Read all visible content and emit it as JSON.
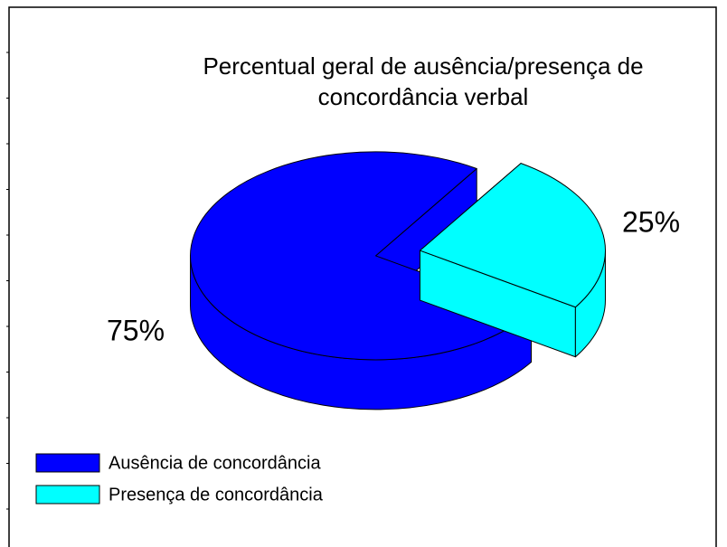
{
  "chart_data": {
    "type": "pie3d",
    "title": "Percentual geral de ausência/presença de concordância verbal",
    "categories": [
      "Ausência de concordância",
      "Presença de concordância"
    ],
    "values": [
      75,
      25
    ],
    "value_labels": [
      "75%",
      "25%"
    ],
    "colors": [
      "#0000ff",
      "#00ffff"
    ],
    "legend": "bottom-left"
  }
}
